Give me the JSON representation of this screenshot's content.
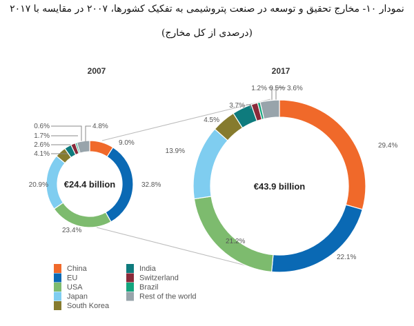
{
  "heading": {
    "line1": "نمودار ۱۰- مخارج تحقیق و توسعه در صنعت پتروشیمی به تفکیک کشورها، ۲۰۰۷ در مقایسه با ۲۰۱۷",
    "line2": "(درصدی از کل مخارج)"
  },
  "chart_data": [
    {
      "type": "pie",
      "title": "2007",
      "center_label": "€24.4 billion",
      "categories": [
        "China",
        "EU",
        "USA",
        "Japan",
        "South Korea",
        "India",
        "Switzerland",
        "Brazil",
        "Rest of the world"
      ],
      "values": [
        9.0,
        32.8,
        23.4,
        20.9,
        4.1,
        2.6,
        1.7,
        0.6,
        4.8
      ],
      "labels": [
        "9.0%",
        "32.8%",
        "23.4%",
        "20.9%",
        "4.1%",
        "2.6%",
        "1.7%",
        "0.6%",
        "4.8%"
      ]
    },
    {
      "type": "pie",
      "title": "2017",
      "center_label": "€43.9 billion",
      "categories": [
        "China",
        "EU",
        "USA",
        "Japan",
        "South Korea",
        "India",
        "Switzerland",
        "Brazil",
        "Rest of the world"
      ],
      "values": [
        29.4,
        22.1,
        21.2,
        13.9,
        4.5,
        3.7,
        1.2,
        0.5,
        3.6
      ],
      "labels": [
        "29.4%",
        "22.1%",
        "21.2%",
        "13.9%",
        "4.5%",
        "3.7%",
        "1.2%",
        "0.5%",
        "3.6%"
      ]
    }
  ],
  "legend": [
    {
      "label": "China",
      "color": "#f0692a"
    },
    {
      "label": "EU",
      "color": "#0a69b4"
    },
    {
      "label": "USA",
      "color": "#7dbb6e"
    },
    {
      "label": "Japan",
      "color": "#7fcdf0"
    },
    {
      "label": "South Korea",
      "color": "#867b2e"
    },
    {
      "label": "India",
      "color": "#0e7b7d"
    },
    {
      "label": "Switzerland",
      "color": "#8a2a3a"
    },
    {
      "label": "Brazil",
      "color": "#14a57e"
    },
    {
      "label": "Rest of the world",
      "color": "#98a4ab"
    }
  ]
}
